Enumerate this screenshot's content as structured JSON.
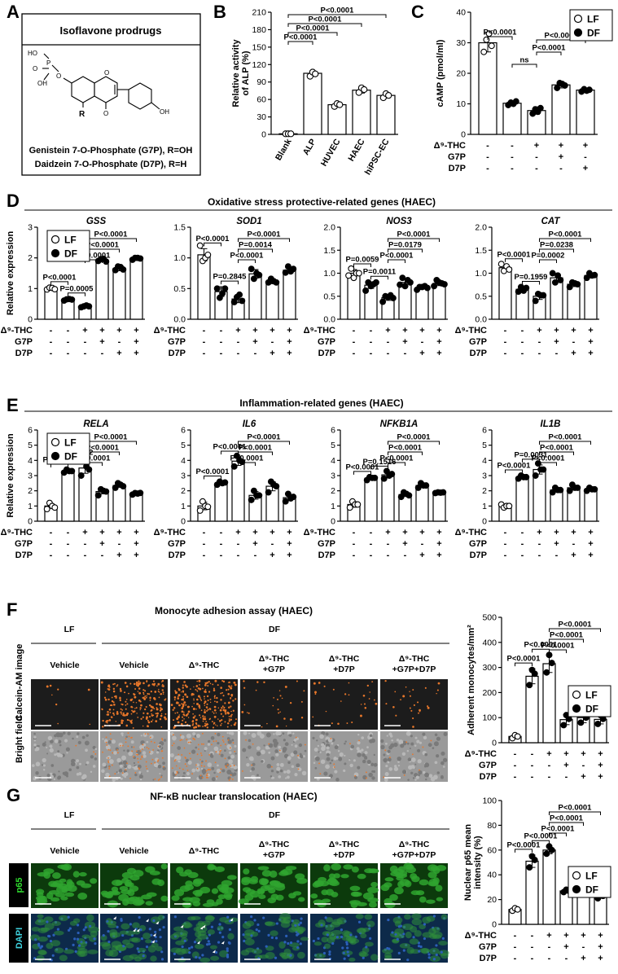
{
  "colors": {
    "point_LF": "#ffffff",
    "point_DF": "#000000",
    "bar_fill": "#ffffff",
    "stroke": "#000000",
    "micro_dark": "#1c1c1c",
    "orange_cells": "#e8772a",
    "brightfield": "#9a9a9a",
    "p65_green": "#2fa52f",
    "dapi_blue": "#2b5fb8"
  },
  "panels": {
    "A": {
      "letter": "A",
      "title": "Isoflavone prodrugs",
      "line1": "Genistein 7-O-Phosphate (G7P), R=OH",
      "line2": "Daidzein 7-O-Phosphate (D7P), R=H"
    },
    "B": {
      "letter": "B"
    },
    "C": {
      "letter": "C"
    },
    "D": {
      "letter": "D",
      "section_title": "Oxidative stress protective-related genes (HAEC)"
    },
    "E": {
      "letter": "E",
      "section_title": "Inflammation-related genes (HAEC)"
    },
    "F": {
      "letter": "F",
      "section_title": "Monocyte adhesion assay (HAEC)",
      "lf_label": "LF",
      "df_label": "DF",
      "row_labels": [
        "Calcein-AM image",
        "Bright field"
      ]
    },
    "G": {
      "letter": "G",
      "section_title": "NF-κB nuclear translocation (HAEC)",
      "lf_label": "LF",
      "df_label": "DF",
      "row_labels": [
        "p65",
        "DAPI"
      ]
    }
  },
  "treatment_labels": [
    "Vehicle",
    "Vehicle",
    "Δ⁹-THC",
    "Δ⁹-THC +G7P",
    "Δ⁹-THC +D7P",
    "Δ⁹-THC +G7P+D7P"
  ],
  "legend": {
    "lf": "LF",
    "df": "DF"
  },
  "chart_data": [
    {
      "id": "B",
      "type": "bar",
      "categories": [
        "Blank",
        "ALP",
        "HUVEC",
        "HAEC",
        "hiPSC-EC"
      ],
      "values": [
        1,
        105,
        51,
        76,
        67
      ],
      "points": [
        [
          1,
          1,
          1
        ],
        [
          100,
          107,
          104
        ],
        [
          48,
          53,
          51
        ],
        [
          72,
          80,
          77
        ],
        [
          63,
          70,
          67
        ]
      ],
      "errors": [
        0.5,
        4,
        3,
        5,
        4
      ],
      "ylabel": "Relative activity of ALP (%)",
      "ylim": [
        0,
        210
      ],
      "yticks": [
        0,
        30,
        60,
        90,
        120,
        150,
        180,
        210
      ],
      "comparisons": [
        {
          "a": 1,
          "b": 2,
          "label": "P<0.0001"
        },
        {
          "a": 1,
          "b": 3,
          "label": "P<0.0001"
        },
        {
          "a": 1,
          "b": 4,
          "label": "P<0.0001"
        },
        {
          "a": 1,
          "b": 5,
          "label": "P<0.0001"
        }
      ]
    },
    {
      "id": "C",
      "type": "bar",
      "values": [
        30,
        10.2,
        7.8,
        16.2,
        14.5
      ],
      "points": [
        [
          27,
          31,
          33,
          29
        ],
        [
          9.6,
          10.4,
          10,
          10.8
        ],
        [
          6.8,
          8.2,
          7.4,
          8.6
        ],
        [
          15.2,
          16.8,
          16.5,
          16
        ],
        [
          14,
          14.8,
          14.3,
          14.6
        ]
      ],
      "errors": [
        3,
        0.8,
        1.2,
        1,
        0.6
      ],
      "groups": [
        "LF",
        "DF",
        "DF",
        "DF",
        "DF"
      ],
      "ylabel": "cAMP (pmol/ml)",
      "ylim": [
        0,
        40
      ],
      "yticks": [
        0,
        10,
        20,
        30,
        40
      ],
      "rows": [
        {
          "label": "Δ⁹-THC",
          "vals": [
            "-",
            "-",
            "+",
            "+",
            "+"
          ]
        },
        {
          "label": "G7P",
          "vals": [
            "-",
            "-",
            "-",
            "+",
            "-"
          ]
        },
        {
          "label": "D7P",
          "vals": [
            "-",
            "-",
            "-",
            "-",
            "+"
          ]
        }
      ],
      "comparisons": [
        {
          "a": 1,
          "b": 2,
          "label": "P<0.0001"
        },
        {
          "a": 2,
          "b": 3,
          "label": "ns"
        },
        {
          "a": 3,
          "b": 4,
          "label": "P<0.0001"
        },
        {
          "a": 3,
          "b": 5,
          "label": "P<0.0001"
        }
      ]
    },
    {
      "id": "D1",
      "type": "bar",
      "title": "GSS",
      "legend": true,
      "values": [
        1.0,
        0.64,
        0.42,
        1.93,
        1.66,
        1.98
      ],
      "points": [
        [
          0.97,
          1.03,
          1.02,
          0.98
        ],
        [
          0.61,
          0.65,
          0.66,
          0.64
        ],
        [
          0.39,
          0.42,
          0.45,
          0.42
        ],
        [
          1.9,
          1.96,
          1.97,
          1.88
        ],
        [
          1.6,
          1.72,
          1.7,
          1.62
        ],
        [
          1.94,
          2.0,
          2.0,
          1.98
        ]
      ],
      "errors": [
        0.04,
        0.03,
        0.03,
        0.05,
        0.08,
        0.04
      ],
      "ylabel": "Relative expression",
      "ylim": [
        0,
        3
      ],
      "yticks": [
        0,
        1,
        2,
        3
      ],
      "comparisons": [
        {
          "a": 1,
          "b": 2,
          "label": "P<0.0001"
        },
        {
          "a": 2,
          "b": 3,
          "label": "P=0.0005"
        },
        {
          "a": 3,
          "b": 4,
          "label": "P<0.0001"
        },
        {
          "a": 3,
          "b": 5,
          "label": "P<0.0001"
        },
        {
          "a": 3,
          "b": 6,
          "label": "P<0.0001"
        }
      ]
    },
    {
      "id": "D2",
      "type": "bar",
      "title": "SOD1",
      "values": [
        1.05,
        0.45,
        0.33,
        0.74,
        0.62,
        0.8
      ],
      "points": [
        [
          1.2,
          0.95,
          1.0,
          1.05
        ],
        [
          0.5,
          0.35,
          0.42,
          0.5
        ],
        [
          0.28,
          0.36,
          0.4,
          0.3
        ],
        [
          0.82,
          0.66,
          0.75,
          0.72
        ],
        [
          0.6,
          0.66,
          0.62,
          0.6
        ],
        [
          0.76,
          0.86,
          0.78,
          0.82
        ]
      ],
      "errors": [
        0.1,
        0.08,
        0.06,
        0.07,
        0.04,
        0.05
      ],
      "ylim": [
        0,
        1.5
      ],
      "yticks": [
        0,
        0.5,
        1.0,
        1.5
      ],
      "comparisons": [
        {
          "a": 1,
          "b": 2,
          "label": "P<0.0001"
        },
        {
          "a": 2,
          "b": 3,
          "label": "P=0.2845"
        },
        {
          "a": 3,
          "b": 4,
          "label": "P<0.0001"
        },
        {
          "a": 3,
          "b": 5,
          "label": "P=0.0014"
        },
        {
          "a": 3,
          "b": 6,
          "label": "P<0.0001"
        }
      ]
    },
    {
      "id": "D3",
      "type": "bar",
      "title": "NOS3",
      "values": [
        1.0,
        0.74,
        0.47,
        0.8,
        0.69,
        0.78
      ],
      "points": [
        [
          0.95,
          1.1,
          0.9,
          1.0,
          1.0
        ],
        [
          0.62,
          0.8,
          0.72,
          0.76,
          0.8
        ],
        [
          0.38,
          0.5,
          0.48,
          0.52,
          0.46
        ],
        [
          0.75,
          0.9,
          0.72,
          0.85,
          0.8
        ],
        [
          0.64,
          0.7,
          0.7,
          0.72,
          0.68
        ],
        [
          0.72,
          0.85,
          0.8,
          0.78,
          0.76
        ]
      ],
      "errors": [
        0.08,
        0.07,
        0.06,
        0.08,
        0.03,
        0.05
      ],
      "ylim": [
        0,
        2.0
      ],
      "yticks": [
        0,
        0.5,
        1.0,
        1.5,
        2.0
      ],
      "comparisons": [
        {
          "a": 1,
          "b": 2,
          "label": "P=0.0059"
        },
        {
          "a": 2,
          "b": 3,
          "label": "P=0.0011"
        },
        {
          "a": 3,
          "b": 4,
          "label": "P<0.0001"
        },
        {
          "a": 3,
          "b": 5,
          "label": "P=0.0179"
        },
        {
          "a": 3,
          "b": 6,
          "label": "P<0.0001"
        }
      ]
    },
    {
      "id": "D4",
      "type": "bar",
      "title": "CAT",
      "values": [
        1.12,
        0.65,
        0.5,
        0.9,
        0.76,
        0.95
      ],
      "points": [
        [
          1.2,
          1.05,
          1.15,
          1.08
        ],
        [
          0.6,
          0.7,
          0.62,
          0.68
        ],
        [
          0.4,
          0.55,
          0.52,
          0.52
        ],
        [
          1.0,
          0.8,
          0.95,
          0.85
        ],
        [
          0.7,
          0.8,
          0.78,
          0.76
        ],
        [
          0.9,
          1.0,
          0.95,
          0.96
        ]
      ],
      "errors": [
        0.07,
        0.05,
        0.07,
        0.09,
        0.05,
        0.05
      ],
      "ylim": [
        0,
        2.0
      ],
      "yticks": [
        0,
        0.5,
        1.0,
        1.5,
        2.0
      ],
      "comparisons": [
        {
          "a": 1,
          "b": 2,
          "label": "P<0.0001"
        },
        {
          "a": 2,
          "b": 3,
          "label": "P=0.1959"
        },
        {
          "a": 3,
          "b": 4,
          "label": "P=0.0002"
        },
        {
          "a": 3,
          "b": 5,
          "label": "P=0.0238"
        },
        {
          "a": 3,
          "b": 6,
          "label": "P<0.0001"
        }
      ]
    },
    {
      "id": "E1",
      "type": "bar",
      "title": "RELA",
      "legend": true,
      "values": [
        1.0,
        3.3,
        3.5,
        1.95,
        2.35,
        1.82
      ],
      "points": [
        [
          0.8,
          1.2,
          1.0,
          0.9
        ],
        [
          3.2,
          3.4,
          3.3,
          3.3
        ],
        [
          3.0,
          4.0,
          3.6,
          3.4
        ],
        [
          1.7,
          2.1,
          2.0,
          1.95
        ],
        [
          2.2,
          2.5,
          2.4,
          2.3
        ],
        [
          1.75,
          1.85,
          1.82,
          1.86
        ]
      ],
      "errors": [
        0.15,
        0.08,
        0.35,
        0.15,
        0.12,
        0.05
      ],
      "ylabel": "Relative expression",
      "ylim": [
        0,
        6.0
      ],
      "yticks": [
        0,
        1.0,
        2.0,
        3.0,
        4.0,
        5.0,
        6.0
      ],
      "comparisons": [
        {
          "a": 1,
          "b": 2,
          "label": "P<0.0001"
        },
        {
          "a": 2,
          "b": 3,
          "label": "P=0.5042"
        },
        {
          "a": 3,
          "b": 4,
          "label": "P<0.0001"
        },
        {
          "a": 3,
          "b": 5,
          "label": "P<0.0001"
        },
        {
          "a": 3,
          "b": 6,
          "label": "P<0.0001"
        }
      ]
    },
    {
      "id": "E2",
      "type": "bar",
      "title": "IL6",
      "values": [
        1.0,
        2.5,
        3.95,
        1.7,
        2.3,
        1.55
      ],
      "points": [
        [
          0.7,
          1.3,
          1.0,
          0.95
        ],
        [
          2.4,
          2.6,
          2.5,
          2.55
        ],
        [
          3.6,
          4.3,
          4.0,
          3.9
        ],
        [
          1.4,
          2.0,
          1.7,
          1.7
        ],
        [
          1.9,
          2.6,
          2.4,
          2.3
        ],
        [
          1.3,
          1.8,
          1.5,
          1.6
        ]
      ],
      "errors": [
        0.25,
        0.1,
        0.28,
        0.25,
        0.3,
        0.2
      ],
      "ylim": [
        0,
        6.0
      ],
      "yticks": [
        0,
        1.0,
        2.0,
        3.0,
        4.0,
        5.0,
        6.0
      ],
      "comparisons": [
        {
          "a": 1,
          "b": 2,
          "label": "P<0.0001"
        },
        {
          "a": 2,
          "b": 3,
          "label": "P<0.0001"
        },
        {
          "a": 3,
          "b": 4,
          "label": "P<0.0001"
        },
        {
          "a": 3,
          "b": 5,
          "label": "P<0.0001"
        },
        {
          "a": 3,
          "b": 6,
          "label": "P<0.0001"
        }
      ]
    },
    {
      "id": "E3",
      "type": "bar",
      "title": "NFKB1A",
      "values": [
        1.1,
        2.82,
        3.05,
        1.75,
        2.35,
        1.88
      ],
      "points": [
        [
          0.9,
          1.3,
          1.1,
          1.1
        ],
        [
          2.7,
          2.9,
          2.85,
          2.85
        ],
        [
          2.8,
          3.3,
          3.0,
          3.1
        ],
        [
          1.6,
          1.9,
          1.8,
          1.7
        ],
        [
          2.2,
          2.5,
          2.35,
          2.35
        ],
        [
          1.85,
          1.9,
          1.88,
          1.9
        ]
      ],
      "errors": [
        0.18,
        0.08,
        0.2,
        0.12,
        0.12,
        0.04
      ],
      "ylim": [
        0,
        6.0
      ],
      "yticks": [
        0,
        1.0,
        2.0,
        3.0,
        4.0,
        5.0,
        6.0
      ],
      "comparisons": [
        {
          "a": 1,
          "b": 2,
          "label": "P<0.0001"
        },
        {
          "a": 2,
          "b": 3,
          "label": "P=0.1516"
        },
        {
          "a": 3,
          "b": 4,
          "label": "P<0.0001"
        },
        {
          "a": 3,
          "b": 5,
          "label": "P<0.0001"
        },
        {
          "a": 3,
          "b": 6,
          "label": "P<0.0001"
        }
      ]
    },
    {
      "id": "E4",
      "type": "bar",
      "title": "IL1B",
      "values": [
        1.0,
        2.9,
        3.4,
        2.05,
        2.2,
        2.1
      ],
      "points": [
        [
          1.1,
          0.9,
          1.0,
          1.0
        ],
        [
          2.8,
          3.0,
          2.9,
          2.9
        ],
        [
          3.0,
          3.8,
          3.4,
          3.4
        ],
        [
          1.9,
          2.2,
          2.05,
          2.05
        ],
        [
          2.0,
          2.4,
          2.2,
          2.2
        ],
        [
          2.0,
          2.2,
          2.1,
          2.1
        ]
      ],
      "errors": [
        0.08,
        0.1,
        0.3,
        0.12,
        0.15,
        0.08
      ],
      "ylim": [
        0,
        6.0
      ],
      "yticks": [
        0,
        1.0,
        2.0,
        3.0,
        4.0,
        5.0,
        6.0
      ],
      "comparisons": [
        {
          "a": 1,
          "b": 2,
          "label": "P<0.0001"
        },
        {
          "a": 2,
          "b": 3,
          "label": "P=0.0031"
        },
        {
          "a": 3,
          "b": 4,
          "label": "P<0.0001"
        },
        {
          "a": 3,
          "b": 5,
          "label": "P<0.0001"
        },
        {
          "a": 3,
          "b": 6,
          "label": "P<0.0001"
        }
      ]
    },
    {
      "id": "F",
      "type": "bar",
      "legend": true,
      "values": [
        25,
        265,
        315,
        92,
        100,
        93
      ],
      "points": [
        [
          18,
          30,
          25
        ],
        [
          230,
          290,
          275
        ],
        [
          280,
          350,
          318
        ],
        [
          70,
          110,
          95
        ],
        [
          80,
          120,
          100
        ],
        [
          75,
          110,
          95
        ]
      ],
      "errors": [
        6,
        30,
        35,
        20,
        20,
        18
      ],
      "ylabel": "Adherent monocytes/mm²",
      "ylim": [
        0,
        500
      ],
      "yticks": [
        0,
        100,
        200,
        300,
        400,
        500
      ],
      "comparisons": [
        {
          "a": 1,
          "b": 2,
          "label": "P<0.0001"
        },
        {
          "a": 2,
          "b": 3,
          "label": "P<0.0001"
        },
        {
          "a": 3,
          "b": 4,
          "label": "P<0.0001"
        },
        {
          "a": 3,
          "b": 5,
          "label": "P<0.0001"
        },
        {
          "a": 3,
          "b": 6,
          "label": "P<0.0001"
        }
      ]
    },
    {
      "id": "G",
      "type": "bar",
      "legend": true,
      "values": [
        12,
        51,
        60,
        27,
        35,
        23
      ],
      "points": [
        [
          11,
          13,
          12
        ],
        [
          46,
          55,
          52
        ],
        [
          57,
          63,
          60
        ],
        [
          26,
          28,
          27
        ],
        [
          33,
          37,
          35
        ],
        [
          21,
          25,
          23
        ]
      ],
      "errors": [
        1.5,
        5,
        3,
        1.5,
        2.5,
        2
      ],
      "ylabel": "Nuclear p65 mean intensity (%)",
      "ylim": [
        0,
        100
      ],
      "yticks": [
        0,
        20,
        40,
        60,
        80,
        100
      ],
      "comparisons": [
        {
          "a": 1,
          "b": 2,
          "label": "P<0.0001"
        },
        {
          "a": 2,
          "b": 3,
          "label": "P<0.0001"
        },
        {
          "a": 3,
          "b": 4,
          "label": "P<0.0001"
        },
        {
          "a": 3,
          "b": 5,
          "label": "P<0.0001"
        },
        {
          "a": 3,
          "b": 6,
          "label": "P<0.0001"
        }
      ]
    }
  ],
  "treatment_rows": [
    {
      "label": "Δ⁹-THC",
      "vals": [
        "-",
        "-",
        "+",
        "+",
        "+",
        "+"
      ]
    },
    {
      "label": "G7P",
      "vals": [
        "-",
        "-",
        "-",
        "+",
        "-",
        "+"
      ]
    },
    {
      "label": "D7P",
      "vals": [
        "-",
        "-",
        "-",
        "-",
        "+",
        "+"
      ]
    }
  ]
}
